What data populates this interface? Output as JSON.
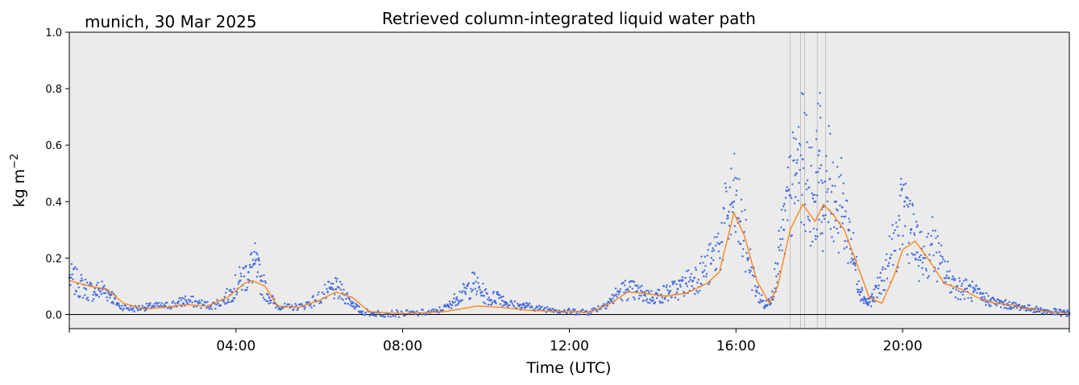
{
  "chart_data": {
    "type": "scatter",
    "title": "Retrieved column-integrated liquid water path",
    "corner_label": "munich, 30 Mar 2025",
    "xlabel": "Time (UTC)",
    "ylabel": "kg m",
    "ylabel_sup": "−2",
    "xlim": [
      0,
      24
    ],
    "ylim": [
      -0.05,
      1.0
    ],
    "x_ticks": [
      {
        "value": 4,
        "label": "04:00"
      },
      {
        "value": 8,
        "label": "08:00"
      },
      {
        "value": 12,
        "label": "12:00"
      },
      {
        "value": 16,
        "label": "16:00"
      },
      {
        "value": 20,
        "label": "20:00"
      }
    ],
    "y_ticks": [
      {
        "value": 0.0,
        "label": "0.0"
      },
      {
        "value": 0.2,
        "label": "0.2"
      },
      {
        "value": 0.4,
        "label": "0.4"
      },
      {
        "value": 0.6,
        "label": "0.6"
      },
      {
        "value": 0.8,
        "label": "0.8"
      },
      {
        "value": 1.0,
        "label": "1.0"
      }
    ],
    "background_color": "#ebebeb",
    "zero_line": 0.0,
    "flag_lines_x": [
      17.3,
      17.55,
      17.65,
      17.95,
      18.15
    ],
    "series": [
      {
        "kind": "scatter",
        "color": "#4169e1",
        "x": [
          0.0,
          0.2,
          0.4,
          0.6,
          0.8,
          1.0,
          1.2,
          1.5,
          1.8,
          2.0,
          2.3,
          2.6,
          2.8,
          3.1,
          3.4,
          3.7,
          3.9,
          4.1,
          4.3,
          4.45,
          4.6,
          4.8,
          5.0,
          5.3,
          5.6,
          5.9,
          6.2,
          6.4,
          6.6,
          6.8,
          7.0,
          7.3,
          7.6,
          8.0,
          8.4,
          8.8,
          9.1,
          9.3,
          9.5,
          9.7,
          9.9,
          10.1,
          10.3,
          10.5,
          10.8,
          11.0,
          11.3,
          11.6,
          11.9,
          12.2,
          12.5,
          12.8,
          13.0,
          13.2,
          13.4,
          13.6,
          13.8,
          14.0,
          14.2,
          14.4,
          14.6,
          14.8,
          15.0,
          15.2,
          15.4,
          15.6,
          15.8,
          15.95,
          16.1,
          16.3,
          16.5,
          16.7,
          16.85,
          17.0,
          17.15,
          17.3,
          17.45,
          17.6,
          17.75,
          17.9,
          18.0,
          18.1,
          18.25,
          18.4,
          18.55,
          18.7,
          18.85,
          19.0,
          19.15,
          19.3,
          19.5,
          19.7,
          19.9,
          20.05,
          20.2,
          20.35,
          20.5,
          20.7,
          20.9,
          21.1,
          21.3,
          21.5,
          21.7,
          21.9,
          22.1,
          22.3,
          22.5,
          22.7,
          22.9,
          23.1,
          23.3,
          23.5,
          23.7,
          23.9,
          24.0
        ],
        "y": [
          0.13,
          0.11,
          0.09,
          0.08,
          0.09,
          0.07,
          0.03,
          0.02,
          0.025,
          0.03,
          0.03,
          0.04,
          0.05,
          0.04,
          0.03,
          0.05,
          0.08,
          0.12,
          0.15,
          0.18,
          0.12,
          0.06,
          0.03,
          0.025,
          0.03,
          0.05,
          0.08,
          0.09,
          0.07,
          0.04,
          0.01,
          0.005,
          0.003,
          0.003,
          0.005,
          0.01,
          0.03,
          0.06,
          0.08,
          0.11,
          0.08,
          0.05,
          0.07,
          0.04,
          0.03,
          0.03,
          0.02,
          0.02,
          0.01,
          0.01,
          0.01,
          0.03,
          0.05,
          0.08,
          0.09,
          0.08,
          0.07,
          0.06,
          0.07,
          0.08,
          0.09,
          0.11,
          0.13,
          0.15,
          0.18,
          0.25,
          0.35,
          0.4,
          0.33,
          0.2,
          0.08,
          0.03,
          0.06,
          0.18,
          0.3,
          0.42,
          0.5,
          0.55,
          0.45,
          0.4,
          0.58,
          0.35,
          0.48,
          0.4,
          0.38,
          0.3,
          0.18,
          0.08,
          0.04,
          0.06,
          0.12,
          0.2,
          0.28,
          0.4,
          0.3,
          0.22,
          0.2,
          0.25,
          0.18,
          0.13,
          0.1,
          0.09,
          0.08,
          0.06,
          0.05,
          0.04,
          0.035,
          0.03,
          0.025,
          0.02,
          0.015,
          0.01,
          0.008,
          0.005,
          0.003
        ]
      },
      {
        "kind": "line",
        "color": "#ff7f0e",
        "x": [
          0.0,
          0.5,
          0.9,
          1.3,
          1.8,
          2.3,
          2.8,
          3.3,
          3.8,
          4.2,
          4.4,
          4.7,
          5.0,
          5.5,
          6.0,
          6.4,
          6.8,
          7.2,
          8.0,
          9.0,
          9.8,
          10.4,
          11.0,
          11.8,
          12.5,
          13.0,
          13.4,
          13.8,
          14.3,
          14.8,
          15.3,
          15.6,
          15.95,
          16.2,
          16.5,
          16.8,
          17.0,
          17.3,
          17.6,
          17.9,
          18.1,
          18.3,
          18.6,
          18.9,
          19.2,
          19.5,
          19.8,
          20.0,
          20.3,
          20.6,
          21.0,
          21.4,
          21.8,
          22.2,
          22.6,
          23.0,
          23.5,
          24.0
        ],
        "y": [
          0.12,
          0.1,
          0.09,
          0.04,
          0.02,
          0.025,
          0.035,
          0.03,
          0.06,
          0.11,
          0.12,
          0.1,
          0.03,
          0.025,
          0.05,
          0.08,
          0.06,
          0.01,
          0.003,
          0.01,
          0.03,
          0.025,
          0.015,
          0.01,
          0.008,
          0.04,
          0.08,
          0.075,
          0.065,
          0.075,
          0.11,
          0.15,
          0.36,
          0.28,
          0.12,
          0.04,
          0.1,
          0.3,
          0.39,
          0.33,
          0.39,
          0.36,
          0.3,
          0.18,
          0.06,
          0.04,
          0.14,
          0.23,
          0.26,
          0.2,
          0.11,
          0.09,
          0.06,
          0.04,
          0.035,
          0.02,
          0.01,
          0.003
        ]
      }
    ]
  }
}
